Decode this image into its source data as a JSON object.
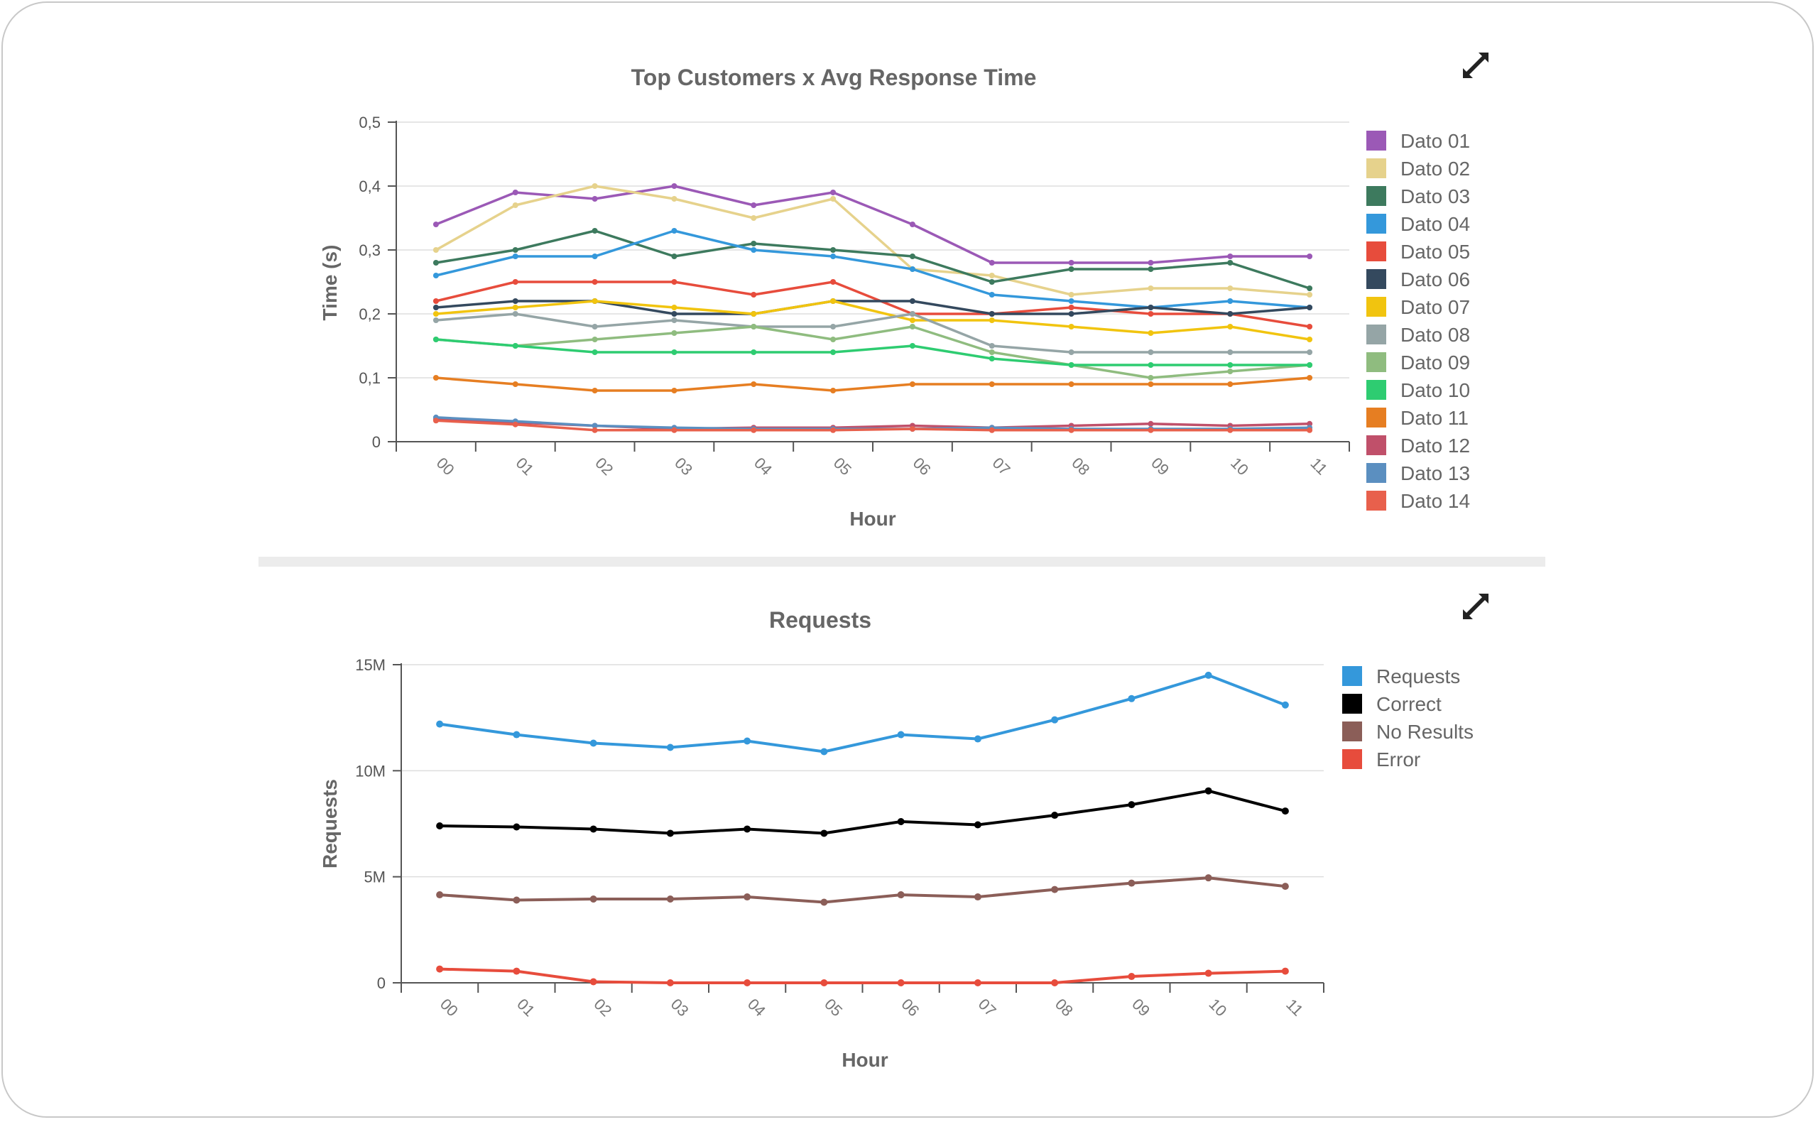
{
  "chart_data": [
    {
      "id": "chart1",
      "type": "line",
      "title": "Top Customers x Avg Response Time",
      "xlabel": "Hour",
      "ylabel": "Time (s)",
      "ylim": [
        0,
        0.5
      ],
      "yticks": [
        0,
        0.1,
        0.2,
        0.3,
        0.4,
        0.5
      ],
      "ytick_labels": [
        "0",
        "0,1",
        "0,2",
        "0,3",
        "0,4",
        "0,5"
      ],
      "grid": true,
      "legend_position": "right",
      "categories": [
        "00",
        "01",
        "02",
        "03",
        "04",
        "05",
        "06",
        "07",
        "08",
        "09",
        "10",
        "11"
      ],
      "series": [
        {
          "name": "Dato 01",
          "color": "#9b59b6",
          "values": [
            0.34,
            0.39,
            0.38,
            0.4,
            0.37,
            0.39,
            0.34,
            0.28,
            0.28,
            0.28,
            0.29,
            0.29
          ]
        },
        {
          "name": "Dato 02",
          "color": "#e6d28c",
          "values": [
            0.3,
            0.37,
            0.4,
            0.38,
            0.35,
            0.38,
            0.27,
            0.26,
            0.23,
            0.24,
            0.24,
            0.23
          ]
        },
        {
          "name": "Dato 03",
          "color": "#3d7a5e",
          "values": [
            0.28,
            0.3,
            0.33,
            0.29,
            0.31,
            0.3,
            0.29,
            0.25,
            0.27,
            0.27,
            0.28,
            0.24
          ]
        },
        {
          "name": "Dato 04",
          "color": "#3498db",
          "values": [
            0.26,
            0.29,
            0.29,
            0.33,
            0.3,
            0.29,
            0.27,
            0.23,
            0.22,
            0.21,
            0.22,
            0.21
          ]
        },
        {
          "name": "Dato 05",
          "color": "#e74c3c",
          "values": [
            0.22,
            0.25,
            0.25,
            0.25,
            0.23,
            0.25,
            0.2,
            0.2,
            0.21,
            0.2,
            0.2,
            0.18
          ]
        },
        {
          "name": "Dato 06",
          "color": "#34495e",
          "values": [
            0.21,
            0.22,
            0.22,
            0.2,
            0.2,
            0.22,
            0.22,
            0.2,
            0.2,
            0.21,
            0.2,
            0.21
          ]
        },
        {
          "name": "Dato 07",
          "color": "#f1c40f",
          "values": [
            0.2,
            0.21,
            0.22,
            0.21,
            0.2,
            0.22,
            0.19,
            0.19,
            0.18,
            0.17,
            0.18,
            0.16
          ]
        },
        {
          "name": "Dato 08",
          "color": "#95a5a6",
          "values": [
            0.19,
            0.2,
            0.18,
            0.19,
            0.18,
            0.18,
            0.2,
            0.15,
            0.14,
            0.14,
            0.14,
            0.14
          ]
        },
        {
          "name": "Dato 09",
          "color": "#8fbc7f",
          "values": [
            0.16,
            0.15,
            0.16,
            0.17,
            0.18,
            0.16,
            0.18,
            0.14,
            0.12,
            0.1,
            0.11,
            0.12
          ]
        },
        {
          "name": "Dato 10",
          "color": "#2ecc71",
          "values": [
            0.16,
            0.15,
            0.14,
            0.14,
            0.14,
            0.14,
            0.15,
            0.13,
            0.12,
            0.12,
            0.12,
            0.12
          ]
        },
        {
          "name": "Dato 11",
          "color": "#e67e22",
          "values": [
            0.1,
            0.09,
            0.08,
            0.08,
            0.09,
            0.08,
            0.09,
            0.09,
            0.09,
            0.09,
            0.09,
            0.1
          ]
        },
        {
          "name": "Dato 12",
          "color": "#c0506a",
          "values": [
            0.035,
            0.03,
            0.025,
            0.02,
            0.022,
            0.022,
            0.025,
            0.022,
            0.025,
            0.028,
            0.025,
            0.028
          ]
        },
        {
          "name": "Dato 13",
          "color": "#5b8fc0",
          "values": [
            0.038,
            0.032,
            0.025,
            0.022,
            0.02,
            0.02,
            0.02,
            0.022,
            0.02,
            0.02,
            0.02,
            0.022
          ]
        },
        {
          "name": "Dato 14",
          "color": "#e8604c",
          "values": [
            0.033,
            0.027,
            0.018,
            0.018,
            0.018,
            0.018,
            0.02,
            0.018,
            0.018,
            0.018,
            0.018,
            0.018
          ]
        }
      ]
    },
    {
      "id": "chart2",
      "type": "line",
      "title": "Requests",
      "xlabel": "Hour",
      "ylabel": "Requests",
      "ylim": [
        0,
        15000000
      ],
      "yticks": [
        0,
        5000000,
        10000000,
        15000000
      ],
      "ytick_labels": [
        "0",
        "5M",
        "10M",
        "15M"
      ],
      "grid": true,
      "legend_position": "right",
      "categories": [
        "00",
        "01",
        "02",
        "03",
        "04",
        "05",
        "06",
        "07",
        "08",
        "09",
        "10",
        "11"
      ],
      "series": [
        {
          "name": "Requests",
          "color": "#3498db",
          "values": [
            12200000,
            11700000,
            11300000,
            11100000,
            11400000,
            10900000,
            11700000,
            11500000,
            12400000,
            13400000,
            14500000,
            13100000
          ]
        },
        {
          "name": "Correct",
          "color": "#000000",
          "values": [
            7400000,
            7350000,
            7250000,
            7050000,
            7250000,
            7050000,
            7600000,
            7450000,
            7900000,
            8400000,
            9050000,
            8100000
          ]
        },
        {
          "name": "No Results",
          "color": "#8b5e58",
          "values": [
            4150000,
            3900000,
            3950000,
            3950000,
            4050000,
            3800000,
            4150000,
            4050000,
            4400000,
            4700000,
            4950000,
            4550000
          ]
        },
        {
          "name": "Error",
          "color": "#e74c3c",
          "values": [
            650000,
            550000,
            50000,
            0,
            0,
            0,
            0,
            0,
            0,
            300000,
            450000,
            550000
          ]
        }
      ]
    }
  ],
  "controls": {
    "expand_icon": "expand-icon"
  }
}
